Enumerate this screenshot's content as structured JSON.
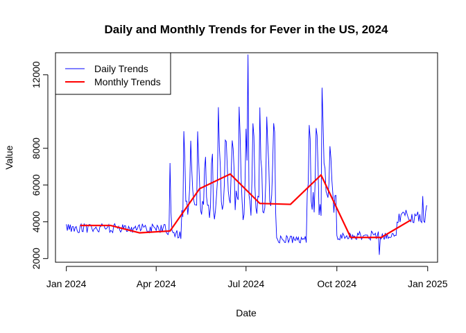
{
  "chart_data": {
    "type": "line",
    "title": "Daily and Monthly Trends for Fever in the US, 2024",
    "xlabel": "Date",
    "ylabel": "Value",
    "xlim": [
      "2023-12-21",
      "2025-01-11"
    ],
    "ylim": [
      1800,
      13200
    ],
    "x_ticks": [
      {
        "date": "2024-01-01",
        "label": "Jan 2024"
      },
      {
        "date": "2024-04-01",
        "label": "Apr 2024"
      },
      {
        "date": "2024-07-01",
        "label": "Jul 2024"
      },
      {
        "date": "2024-10-01",
        "label": "Oct 2024"
      },
      {
        "date": "2025-01-01",
        "label": "Jan 2025"
      }
    ],
    "y_ticks": [
      {
        "value": 2000,
        "label": "2000"
      },
      {
        "value": 4000,
        "label": "4000"
      },
      {
        "value": 6000,
        "label": "6000"
      },
      {
        "value": 8000,
        "label": "8000"
      },
      {
        "value": 12000,
        "label": "12000"
      }
    ],
    "legend": {
      "position": "top-left",
      "entries": [
        {
          "label": "Daily Trends",
          "color": "#0000ff"
        },
        {
          "label": "Monthly Trends",
          "color": "#ff0000"
        }
      ]
    },
    "series": [
      {
        "name": "Daily Trends",
        "color": "#0000ff",
        "segments": [
          {
            "start": "2024-01-01",
            "end": "2024-04-10",
            "level": 3650,
            "noise": 250,
            "weekly": 0
          },
          {
            "start": "2024-04-11",
            "end": "2024-04-26",
            "level": 3300,
            "noise": 250,
            "weekly": 0
          },
          {
            "start": "2024-04-27",
            "end": "2024-05-31",
            "level": 4600,
            "noise": 600,
            "weekly": 4500
          },
          {
            "start": "2024-06-01",
            "end": "2024-07-31",
            "level": 5000,
            "noise": 700,
            "weekly": 5500
          },
          {
            "start": "2024-08-01",
            "end": "2024-08-31",
            "level": 3050,
            "noise": 200,
            "weekly": 0
          },
          {
            "start": "2024-09-01",
            "end": "2024-09-30",
            "level": 5000,
            "noise": 700,
            "weekly": 5000
          },
          {
            "start": "2024-10-01",
            "end": "2024-11-30",
            "level": 3250,
            "noise": 250,
            "weekly": 0
          },
          {
            "start": "2024-12-01",
            "end": "2024-12-31",
            "level": 4300,
            "noise": 350,
            "weekly": 0
          }
        ],
        "anchors": [
          {
            "date": "2024-04-15",
            "value": 7200
          },
          {
            "date": "2024-04-16",
            "value": 4500
          },
          {
            "date": "2024-07-03",
            "value": 13100
          },
          {
            "date": "2024-06-28",
            "value": 4100
          },
          {
            "date": "2024-09-16",
            "value": 11300
          },
          {
            "date": "2024-11-13",
            "value": 2200
          },
          {
            "date": "2024-12-27",
            "value": 5400
          },
          {
            "date": "2024-12-31",
            "value": 4900
          }
        ]
      },
      {
        "name": "Monthly Trends",
        "color": "#ff0000",
        "points": [
          {
            "date": "2024-01-15",
            "value": 3800
          },
          {
            "date": "2024-02-15",
            "value": 3800
          },
          {
            "date": "2024-03-15",
            "value": 3400
          },
          {
            "date": "2024-04-15",
            "value": 3500
          },
          {
            "date": "2024-05-15",
            "value": 5800
          },
          {
            "date": "2024-06-15",
            "value": 6600
          },
          {
            "date": "2024-07-15",
            "value": 5000
          },
          {
            "date": "2024-08-15",
            "value": 4950
          },
          {
            "date": "2024-09-15",
            "value": 6550
          },
          {
            "date": "2024-10-15",
            "value": 3150
          },
          {
            "date": "2024-11-15",
            "value": 3150
          },
          {
            "date": "2024-12-15",
            "value": 4100
          }
        ]
      }
    ]
  }
}
